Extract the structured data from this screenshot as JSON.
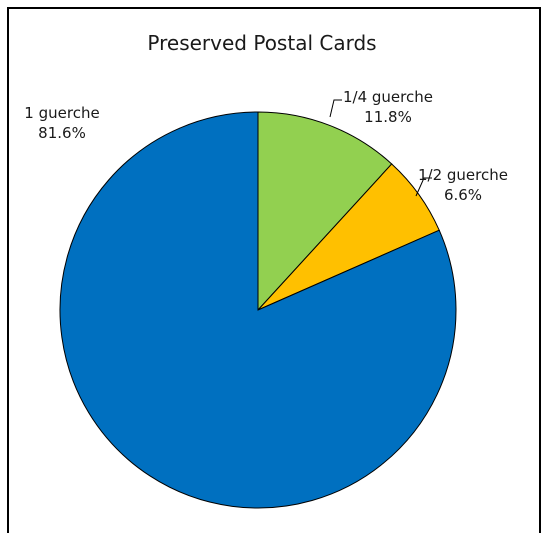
{
  "chart_data": {
    "type": "pie",
    "title": "Preserved Postal Cards",
    "slices": [
      {
        "label": "1/4 guerche",
        "value": 11.8,
        "percent_label": "11.8%",
        "color": "#92d050"
      },
      {
        "label": "1/2 guerche",
        "value": 6.6,
        "percent_label": "6.6%",
        "color": "#ffc000"
      },
      {
        "label": "1 guerche",
        "value": 81.6,
        "percent_label": "81.6%",
        "color": "#0070c0"
      }
    ],
    "start_angle_deg": 0,
    "direction": "clockwise",
    "slice_outline_color": "#000000"
  }
}
